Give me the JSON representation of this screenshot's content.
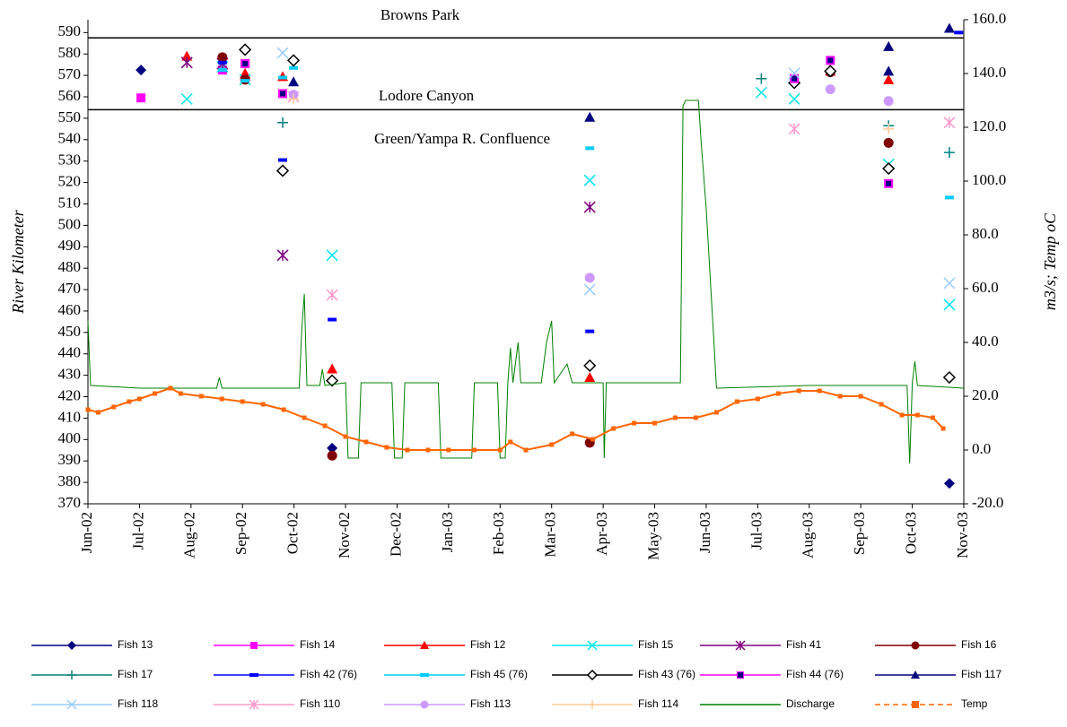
{
  "chart_data": {
    "type": "scatter",
    "y_label": "River Kilometer",
    "y2_label": "m3/s; Temp oC",
    "annotations": [
      "Browns Park",
      "Lodore Canyon",
      "Green/Yampa R. Confluence"
    ],
    "reference_lines": [
      587.5,
      554
    ],
    "xlim": [
      0,
      17
    ],
    "xticks": [
      {
        "value": 0,
        "label": "Jun-02"
      },
      {
        "value": 1,
        "label": "Jul-02"
      },
      {
        "value": 2,
        "label": "Aug-02"
      },
      {
        "value": 3,
        "label": "Sep-02"
      },
      {
        "value": 4,
        "label": "Oct-02"
      },
      {
        "value": 5,
        "label": "Nov-02"
      },
      {
        "value": 6,
        "label": "Dec-02"
      },
      {
        "value": 7,
        "label": "Jan-03"
      },
      {
        "value": 8,
        "label": "Feb-03"
      },
      {
        "value": 9,
        "label": "Mar-03"
      },
      {
        "value": 10,
        "label": "Apr-03"
      },
      {
        "value": 11,
        "label": "May-03"
      },
      {
        "value": 12,
        "label": "Jun-03"
      },
      {
        "value": 13,
        "label": "Jul-03"
      },
      {
        "value": 14,
        "label": "Aug-03"
      },
      {
        "value": 15,
        "label": "Sep-03"
      },
      {
        "value": 16,
        "label": "Oct-03"
      },
      {
        "value": 17,
        "label": "Nov-03"
      }
    ],
    "ylim": [
      370,
      596
    ],
    "yticks": [
      370,
      380,
      390,
      400,
      410,
      420,
      430,
      440,
      450,
      460,
      470,
      480,
      490,
      500,
      510,
      520,
      530,
      540,
      550,
      560,
      570,
      580,
      590
    ],
    "y2lim": [
      -20,
      160
    ],
    "y2ticks": [
      {
        "value": -20,
        "label": "-20.0"
      },
      {
        "value": 0,
        "label": "0.0"
      },
      {
        "value": 20,
        "label": "20.0"
      },
      {
        "value": 40,
        "label": "40.0"
      },
      {
        "value": 60,
        "label": "60.0"
      },
      {
        "value": 80,
        "label": "80.0"
      },
      {
        "value": 100,
        "label": "100.0"
      },
      {
        "value": 120,
        "label": "120.0"
      },
      {
        "value": 140,
        "label": "140.0"
      },
      {
        "value": 160,
        "label": "160.0"
      }
    ],
    "series": [
      {
        "name": "Fish 13",
        "color": "#000080",
        "marker": "diamond",
        "x": [
          1.03,
          4.74,
          16.72
        ],
        "values": [
          572.5,
          396,
          379.5
        ]
      },
      {
        "name": "Fish 14",
        "color": "#ff00ff",
        "marker": "square",
        "x": [
          1.03,
          2.61,
          3.05
        ],
        "values": [
          559.5,
          572.5,
          575.5
        ]
      },
      {
        "name": "Fish 12",
        "color": "#ff0000",
        "marker": "triangle",
        "x": [
          1.92,
          3.05,
          3.78,
          4.74,
          9.74,
          14.41,
          15.54
        ],
        "values": [
          579,
          571,
          569.5,
          433,
          429,
          572,
          568
        ]
      },
      {
        "name": "Fish 15",
        "color": "#00e5ee",
        "marker": "x",
        "x": [
          1.92,
          2.61,
          3.05,
          4.74,
          9.74,
          13.07,
          13.71,
          15.54,
          16.72
        ],
        "values": [
          559,
          574,
          568,
          486,
          521,
          562,
          559,
          528.5,
          463
        ]
      },
      {
        "name": "Fish 41",
        "color": "#800080",
        "marker": "asterisk",
        "x": [
          1.92,
          2.61,
          3.78,
          9.74
        ],
        "values": [
          576,
          575.5,
          486,
          508.5
        ]
      },
      {
        "name": "Fish 16",
        "color": "#800000",
        "marker": "circle",
        "x": [
          2.61,
          3.05,
          4.74,
          9.74,
          14.41,
          15.54
        ],
        "values": [
          578.5,
          568,
          392.5,
          398.5,
          571.5,
          538.5
        ]
      },
      {
        "name": "Fish 17",
        "color": "#008080",
        "marker": "plus",
        "x": [
          3.78,
          13.07,
          15.54,
          16.72
        ],
        "values": [
          548,
          568.5,
          546.5,
          534
        ]
      },
      {
        "name": "Fish 42 (76)",
        "color": "#0000ff",
        "marker": "dash",
        "x": [
          2.61,
          3.78,
          4.74,
          9.74,
          16.9
        ],
        "values": [
          576,
          530.5,
          456,
          450.5,
          590
        ]
      },
      {
        "name": "Fish 45 (76)",
        "color": "#00ccff",
        "marker": "dash",
        "x": [
          2.61,
          3.05,
          3.78,
          3.99,
          9.74,
          14.41,
          16.72
        ],
        "values": [
          572.5,
          567.5,
          569,
          573.5,
          536,
          577,
          513
        ]
      },
      {
        "name": "Fish 43 (76)",
        "color": "#000000",
        "marker": "open-diamond",
        "x": [
          3.05,
          3.78,
          3.99,
          4.74,
          9.74,
          13.71,
          14.41,
          15.54,
          16.72
        ],
        "values": [
          582,
          525.5,
          577,
          427.5,
          434.5,
          566.5,
          572,
          526.5,
          429
        ]
      },
      {
        "name": "Fish 44 (76)",
        "color": "#ff00ff",
        "marker_fill": "#000080",
        "marker": "square-dot",
        "x": [
          3.05,
          3.78,
          13.71,
          14.41,
          15.54
        ],
        "values": [
          575.5,
          561.5,
          568.5,
          577,
          519.5
        ]
      },
      {
        "name": "Fish 117",
        "color": "#000080",
        "marker": "triangle",
        "x": [
          3.99,
          9.74,
          15.54,
          15.54,
          16.72
        ],
        "values": [
          567,
          550.5,
          583.5,
          572,
          592
        ]
      },
      {
        "name": "Fish 118",
        "color": "#99ccff",
        "marker": "x",
        "x": [
          3.78,
          9.74,
          13.71,
          16.72
        ],
        "values": [
          580.5,
          470,
          571,
          473
        ]
      },
      {
        "name": "Fish 110",
        "color": "#ff99cc",
        "marker": "asterisk",
        "x": [
          3.99,
          4.74,
          13.71,
          16.72
        ],
        "values": [
          560,
          467.5,
          545,
          548
        ]
      },
      {
        "name": "Fish 113",
        "color": "#cc99ff",
        "marker": "circle",
        "x": [
          3.99,
          9.74,
          14.41,
          15.54
        ],
        "values": [
          561,
          475.5,
          563.5,
          558
        ]
      },
      {
        "name": "Fish 114",
        "color": "#ffcc99",
        "marker": "plus",
        "x": [
          3.99,
          15.54
        ],
        "values": [
          559,
          545
        ]
      },
      {
        "name": "Discharge",
        "color": "#008000",
        "axis": "y2",
        "line": true,
        "x": [
          0,
          0.05,
          1,
          2.5,
          2.55,
          2.6,
          4.1,
          4.15,
          4.2,
          4.25,
          4.5,
          4.55,
          4.6,
          5,
          5.05,
          5.25,
          5.3,
          5.9,
          5.95,
          6.1,
          6.15,
          6.8,
          6.85,
          7.45,
          7.5,
          7.95,
          8,
          8.1,
          8.15,
          8.2,
          8.25,
          8.35,
          8.4,
          8.8,
          8.9,
          9,
          9.05,
          9.3,
          9.4,
          10,
          10.02,
          10.06,
          11.5,
          11.55,
          11.6,
          11.85,
          11.9,
          12,
          12.15,
          12.2,
          14,
          15.9,
          15.95,
          16,
          16.05,
          16.1,
          17
        ],
        "values": [
          48,
          24,
          23,
          23,
          27,
          23,
          23,
          45,
          58,
          24,
          24,
          30,
          24,
          25,
          -3,
          -3,
          25,
          25,
          -3,
          -3,
          25,
          25,
          -3,
          -3,
          25,
          25,
          -3,
          -3,
          25,
          38,
          25,
          40,
          25,
          25,
          40,
          48,
          25,
          32,
          25,
          25,
          -3,
          25,
          25,
          128,
          130,
          130,
          115,
          90,
          40,
          23,
          24,
          24,
          -5,
          25,
          33,
          24,
          23
        ]
      },
      {
        "name": "Temp",
        "color": "#ff6600",
        "axis": "y2",
        "line": true,
        "marker": "square",
        "x": [
          0,
          0.2,
          0.5,
          0.8,
          1,
          1.3,
          1.6,
          1.8,
          2.2,
          2.6,
          3,
          3.4,
          3.8,
          4.2,
          4.6,
          5,
          5.4,
          5.8,
          6.2,
          6.6,
          7,
          7.5,
          8,
          8.2,
          8.5,
          9,
          9.4,
          9.8,
          10.2,
          10.6,
          11,
          11.4,
          11.8,
          12.2,
          12.6,
          13,
          13.4,
          13.8,
          14.2,
          14.6,
          15,
          15.4,
          15.8,
          16.1,
          16.4,
          16.6
        ],
        "values": [
          15,
          14,
          16,
          18,
          19,
          21,
          23,
          21,
          20,
          19,
          18,
          17,
          15,
          12,
          9,
          5,
          3,
          1,
          0,
          0,
          0,
          0,
          0,
          3,
          0,
          2,
          6,
          4,
          8,
          10,
          10,
          12,
          12,
          14,
          18,
          19,
          21,
          22,
          22,
          20,
          20,
          17,
          13,
          13,
          12,
          8
        ]
      }
    ]
  }
}
